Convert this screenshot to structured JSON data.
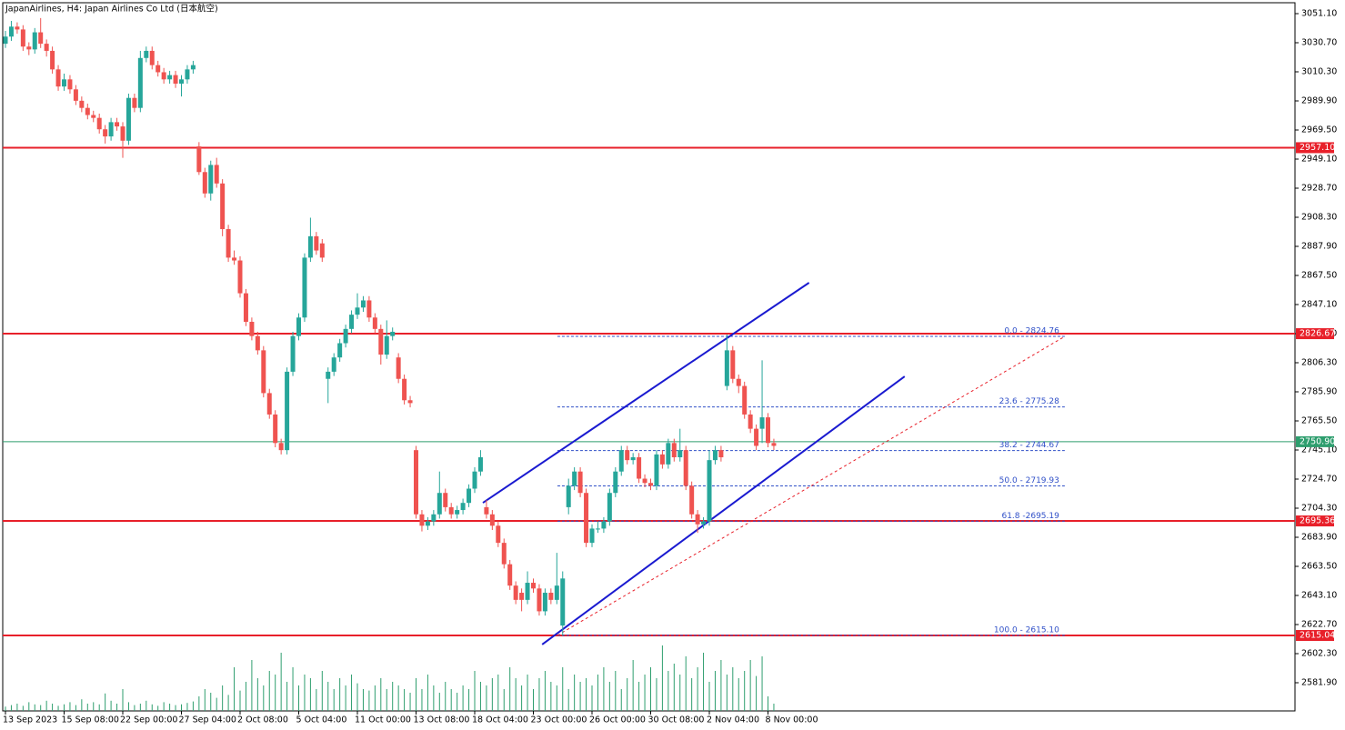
{
  "chart_data": {
    "type": "candlestick",
    "title": "JapanAirlines, H4:  Japan Airlines Co Ltd (日本航空)",
    "up_color": "#26a69a",
    "down_color": "#ef5350",
    "ylim": [
      2562.14,
      3058.75
    ],
    "yticks": [
      {
        "value": 3051.1,
        "label": "3051.10"
      },
      {
        "value": 3030.7,
        "label": "3030.70"
      },
      {
        "value": 3010.3,
        "label": "3010.30"
      },
      {
        "value": 2989.9,
        "label": "2989.90"
      },
      {
        "value": 2969.5,
        "label": "2969.50"
      },
      {
        "value": 2949.1,
        "label": "2949.10"
      },
      {
        "value": 2928.7,
        "label": "2928.70"
      },
      {
        "value": 2908.3,
        "label": "2908.30"
      },
      {
        "value": 2887.9,
        "label": "2887.90"
      },
      {
        "value": 2867.5,
        "label": "2867.50"
      },
      {
        "value": 2847.1,
        "label": "2847.10"
      },
      {
        "value": 2826.7,
        "label": "2826.70"
      },
      {
        "value": 2806.3,
        "label": "2806.30"
      },
      {
        "value": 2785.9,
        "label": "2785.90"
      },
      {
        "value": 2765.5,
        "label": "2765.50"
      },
      {
        "value": 2745.1,
        "label": "2745.10"
      },
      {
        "value": 2724.7,
        "label": "2724.70"
      },
      {
        "value": 2704.3,
        "label": "2704.30"
      },
      {
        "value": 2683.9,
        "label": "2683.90"
      },
      {
        "value": 2663.5,
        "label": "2663.50"
      },
      {
        "value": 2643.1,
        "label": "2643.10"
      },
      {
        "value": 2622.7,
        "label": "2622.70"
      },
      {
        "value": 2602.3,
        "label": "2602.30"
      },
      {
        "value": 2581.9,
        "label": "2581.90"
      }
    ],
    "xticks": [
      {
        "value": 0,
        "label": "13 Sep 2023"
      },
      {
        "value": 10,
        "label": "15 Sep 08:00"
      },
      {
        "value": 20,
        "label": "22 Sep 00:00"
      },
      {
        "value": 30,
        "label": "27 Sep 04:00"
      },
      {
        "value": 40,
        "label": "2 Oct 08:00"
      },
      {
        "value": 50,
        "label": "5 Oct 04:00"
      },
      {
        "value": 60,
        "label": "11 Oct 00:00"
      },
      {
        "value": 70,
        "label": "13 Oct 08:00"
      },
      {
        "value": 80,
        "label": "18 Oct 04:00"
      },
      {
        "value": 90,
        "label": "23 Oct 00:00"
      },
      {
        "value": 100,
        "label": "26 Oct 00:00"
      },
      {
        "value": 110,
        "label": "30 Oct 08:00"
      },
      {
        "value": 120,
        "label": "2 Nov 04:00"
      },
      {
        "value": 130,
        "label": "8 Nov 00:00"
      }
    ],
    "candles": [
      [
        3030,
        3039,
        3027,
        3035
      ],
      [
        3035,
        3046,
        3032,
        3042
      ],
      [
        3042,
        3045,
        3037,
        3040
      ],
      [
        3040,
        3043,
        3025,
        3028
      ],
      [
        3028,
        3031,
        3022,
        3026
      ],
      [
        3026,
        3041,
        3023,
        3038
      ],
      [
        3038,
        3048,
        3027,
        3030
      ],
      [
        3030,
        3033,
        3021,
        3025
      ],
      [
        3025,
        3028,
        3009,
        3012
      ],
      [
        3012,
        3015,
        2997,
        3000
      ],
      [
        3000,
        3009,
        2997,
        3005
      ],
      [
        3005,
        3008,
        2995,
        2998
      ],
      [
        2998,
        3001,
        2987,
        2990
      ],
      [
        2990,
        2993,
        2982,
        2985
      ],
      [
        2985,
        2988,
        2977,
        2980
      ],
      [
        2980,
        2983,
        2975,
        2978
      ],
      [
        2978,
        2981,
        2967,
        2970
      ],
      [
        2970,
        2973,
        2960,
        2965
      ],
      [
        2965,
        2978,
        2962,
        2975
      ],
      [
        2975,
        2978,
        2969,
        2972
      ],
      [
        2972,
        2975,
        2950,
        2962
      ],
      [
        2962,
        2995,
        2959,
        2992
      ],
      [
        2992,
        2995,
        2982,
        2985
      ],
      [
        2985,
        3025,
        2982,
        3020
      ],
      [
        3020,
        3028,
        3017,
        3025
      ],
      [
        3025,
        3028,
        3012,
        3015
      ],
      [
        3015,
        3018,
        3007,
        3010
      ],
      [
        3010,
        3013,
        3002,
        3005
      ],
      [
        3005,
        3011,
        3002,
        3008
      ],
      [
        3008,
        3011,
        2999,
        3002
      ],
      [
        3002,
        3008,
        2993,
        3005
      ],
      [
        3005,
        3015,
        3002,
        3012
      ],
      [
        3012,
        3018,
        3009,
        3015
      ],
      [
        2958,
        2961,
        2938,
        2940
      ],
      [
        2940,
        2943,
        2922,
        2925
      ],
      [
        2925,
        2948,
        2920,
        2945
      ],
      [
        2945,
        2950,
        2929,
        2932
      ],
      [
        2932,
        2935,
        2895,
        2900
      ],
      [
        2900,
        2903,
        2877,
        2880
      ],
      [
        2880,
        2885,
        2875,
        2878
      ],
      [
        2878,
        2881,
        2852,
        2855
      ],
      [
        2855,
        2858,
        2832,
        2835
      ],
      [
        2835,
        2838,
        2822,
        2825
      ],
      [
        2825,
        2828,
        2812,
        2815
      ],
      [
        2815,
        2818,
        2782,
        2785
      ],
      [
        2785,
        2788,
        2767,
        2770
      ],
      [
        2770,
        2773,
        2747,
        2750
      ],
      [
        2750,
        2753,
        2742,
        2745
      ],
      [
        2745,
        2803,
        2742,
        2800
      ],
      [
        2800,
        2828,
        2797,
        2825
      ],
      [
        2825,
        2841,
        2822,
        2838
      ],
      [
        2838,
        2883,
        2835,
        2880
      ],
      [
        2880,
        2908,
        2877,
        2895
      ],
      [
        2895,
        2898,
        2882,
        2885
      ],
      [
        2890,
        2893,
        2877,
        2880
      ],
      [
        2795,
        2803,
        2778,
        2800
      ],
      [
        2800,
        2813,
        2797,
        2810
      ],
      [
        2810,
        2823,
        2807,
        2820
      ],
      [
        2820,
        2833,
        2817,
        2830
      ],
      [
        2830,
        2843,
        2827,
        2840
      ],
      [
        2840,
        2855,
        2837,
        2845
      ],
      [
        2845,
        2853,
        2842,
        2850
      ],
      [
        2850,
        2853,
        2835,
        2838
      ],
      [
        2838,
        2841,
        2827,
        2830
      ],
      [
        2830,
        2833,
        2805,
        2812
      ],
      [
        2812,
        2836,
        2809,
        2825
      ],
      [
        2825,
        2831,
        2822,
        2828
      ],
      [
        2810,
        2813,
        2792,
        2795
      ],
      [
        2795,
        2798,
        2777,
        2780
      ],
      [
        2780,
        2783,
        2775,
        2778
      ],
      [
        2745,
        2748,
        2697,
        2700
      ],
      [
        2700,
        2703,
        2688,
        2692
      ],
      [
        2692,
        2698,
        2689,
        2695
      ],
      [
        2695,
        2703,
        2692,
        2700
      ],
      [
        2700,
        2730,
        2697,
        2715
      ],
      [
        2715,
        2718,
        2702,
        2705
      ],
      [
        2705,
        2708,
        2697,
        2700
      ],
      [
        2700,
        2706,
        2697,
        2703
      ],
      [
        2703,
        2711,
        2700,
        2708
      ],
      [
        2708,
        2721,
        2705,
        2718
      ],
      [
        2718,
        2733,
        2715,
        2730
      ],
      [
        2730,
        2745,
        2727,
        2740
      ],
      [
        2705,
        2710,
        2697,
        2700
      ],
      [
        2700,
        2703,
        2689,
        2692
      ],
      [
        2692,
        2695,
        2677,
        2680
      ],
      [
        2680,
        2683,
        2662,
        2665
      ],
      [
        2665,
        2668,
        2647,
        2650
      ],
      [
        2650,
        2653,
        2637,
        2640
      ],
      [
        2645,
        2648,
        2632,
        2640
      ],
      [
        2640,
        2660,
        2637,
        2652
      ],
      [
        2652,
        2655,
        2645,
        2648
      ],
      [
        2648,
        2651,
        2629,
        2632
      ],
      [
        2632,
        2648,
        2629,
        2645
      ],
      [
        2645,
        2648,
        2637,
        2640
      ],
      [
        2640,
        2673,
        2637,
        2650
      ],
      [
        2622,
        2660,
        2615,
        2655
      ],
      [
        2705,
        2725,
        2700,
        2720
      ],
      [
        2720,
        2733,
        2717,
        2730
      ],
      [
        2730,
        2733,
        2712,
        2715
      ],
      [
        2715,
        2718,
        2677,
        2680
      ],
      [
        2680,
        2693,
        2677,
        2690
      ],
      [
        2690,
        2695,
        2687,
        2690
      ],
      [
        2690,
        2698,
        2687,
        2695
      ],
      [
        2695,
        2718,
        2692,
        2715
      ],
      [
        2715,
        2733,
        2712,
        2730
      ],
      [
        2730,
        2748,
        2727,
        2745
      ],
      [
        2745,
        2748,
        2735,
        2738
      ],
      [
        2738,
        2743,
        2735,
        2740
      ],
      [
        2740,
        2743,
        2722,
        2725
      ],
      [
        2725,
        2728,
        2719,
        2722
      ],
      [
        2722,
        2725,
        2717,
        2720
      ],
      [
        2720,
        2745,
        2717,
        2742
      ],
      [
        2742,
        2745,
        2732,
        2735
      ],
      [
        2735,
        2753,
        2732,
        2750
      ],
      [
        2750,
        2753,
        2737,
        2740
      ],
      [
        2740,
        2760,
        2737,
        2745
      ],
      [
        2745,
        2748,
        2717,
        2720
      ],
      [
        2720,
        2723,
        2697,
        2700
      ],
      [
        2700,
        2703,
        2687,
        2693
      ],
      [
        2693,
        2698,
        2690,
        2695
      ],
      [
        2695,
        2745,
        2692,
        2738
      ],
      [
        2738,
        2748,
        2735,
        2745
      ],
      [
        2745,
        2748,
        2737,
        2740
      ],
      [
        2790,
        2826,
        2787,
        2815
      ],
      [
        2815,
        2818,
        2792,
        2795
      ],
      [
        2795,
        2798,
        2785,
        2790
      ],
      [
        2790,
        2793,
        2767,
        2770
      ],
      [
        2770,
        2773,
        2757,
        2760
      ],
      [
        2760,
        2763,
        2745,
        2748
      ],
      [
        2760,
        2808,
        2750,
        2768
      ],
      [
        2768,
        2771,
        2747,
        2750
      ],
      [
        2750,
        2753,
        2745,
        2748
      ]
    ],
    "volumes": [
      6,
      8,
      10,
      7,
      12,
      9,
      8,
      14,
      10,
      7,
      9,
      12,
      8,
      16,
      10,
      12,
      9,
      24,
      14,
      10,
      30,
      12,
      8,
      10,
      14,
      9,
      7,
      12,
      10,
      8,
      9,
      11,
      13,
      20,
      30,
      25,
      18,
      35,
      22,
      60,
      28,
      40,
      70,
      45,
      35,
      55,
      50,
      80,
      40,
      60,
      35,
      50,
      45,
      30,
      55,
      40,
      30,
      45,
      35,
      50,
      38,
      30,
      28,
      35,
      45,
      30,
      40,
      35,
      30,
      25,
      45,
      30,
      50,
      35,
      25,
      40,
      30,
      25,
      35,
      30,
      55,
      40,
      35,
      45,
      50,
      30,
      60,
      45,
      35,
      50,
      30,
      45,
      55,
      40,
      35,
      60,
      30,
      50,
      40,
      45,
      35,
      50,
      60,
      40,
      55,
      30,
      45,
      70,
      40,
      50,
      60,
      45,
      90,
      55,
      65,
      50,
      75,
      45,
      60,
      80,
      40,
      55,
      70,
      50,
      60,
      45,
      55,
      70,
      48,
      75,
      20,
      10
    ],
    "volume_color": "#2e9e6e",
    "hlines": [
      {
        "value": 2957.1,
        "label": "2957.10",
        "color": "#e8202a",
        "line_width": 2
      },
      {
        "value": 2826.67,
        "label": "2826.67",
        "color": "#e8202a",
        "line_width": 2
      },
      {
        "value": 2750.9,
        "label": "2750.90",
        "color": "#2e9e6e",
        "line_width": 1
      },
      {
        "value": 2695.36,
        "label": "2695.36",
        "color": "#e8202a",
        "line_width": 2
      },
      {
        "value": 2615.04,
        "label": "2615.04",
        "color": "#e8202a",
        "line_width": 2
      }
    ],
    "fibonacci": {
      "from_bar": 94.1,
      "to_bar": 180.6,
      "color": "#3050c8",
      "diagonal_color": "#e8202a",
      "levels": [
        {
          "value": 2824.76,
          "label": "0.0 - 2824.76"
        },
        {
          "value": 2775.28,
          "label": "23.6 - 2775.28"
        },
        {
          "value": 2744.67,
          "label": "38.2 - 2744.67"
        },
        {
          "value": 2719.93,
          "label": "50.0 - 2719.93"
        },
        {
          "value": 2695.19,
          "label": "61.8 -2695.19"
        },
        {
          "value": 2615.1,
          "label": "100.0 - 2615.10"
        }
      ]
    },
    "channel": {
      "color": "#1a1ad0",
      "lines": [
        {
          "bars": [
            81.4,
            137
          ],
          "prices": [
            2708.1,
            2862.4
          ]
        },
        {
          "bars": [
            91.5,
            153.3
          ],
          "prices": [
            2608.7,
            2796.7
          ]
        }
      ]
    }
  }
}
